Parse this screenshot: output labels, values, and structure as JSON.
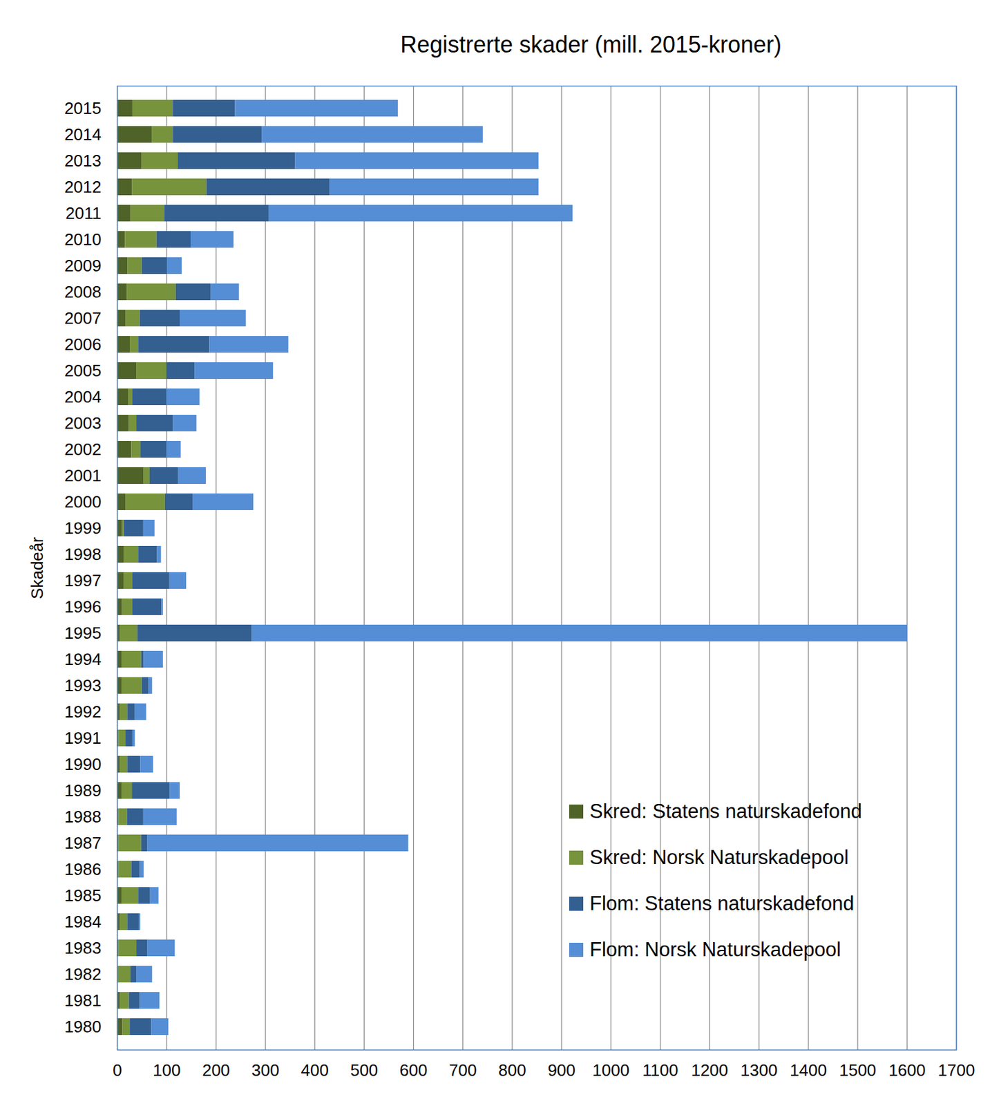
{
  "chart_data": {
    "type": "bar",
    "orientation": "horizontal",
    "stacked": true,
    "title": "Registrerte skader (mill. 2015-kroner)",
    "y_label": "Skadeår",
    "categories": [
      "2015",
      "2014",
      "2013",
      "2012",
      "2011",
      "2010",
      "2009",
      "2008",
      "2007",
      "2006",
      "2005",
      "2004",
      "2003",
      "2002",
      "2001",
      "2000",
      "1999",
      "1998",
      "1997",
      "1996",
      "1995",
      "1994",
      "1993",
      "1992",
      "1991",
      "1990",
      "1989",
      "1988",
      "1987",
      "1986",
      "1985",
      "1984",
      "1983",
      "1982",
      "1981",
      "1980"
    ],
    "series": [
      {
        "name": "Skred: Statens naturskadefond",
        "color": "#4f6228",
        "values": [
          31,
          70,
          50,
          30,
          27,
          16,
          21,
          20,
          17,
          26,
          39,
          23,
          24,
          29,
          54,
          17,
          10,
          14,
          13,
          10,
          6,
          9,
          9,
          6,
          3,
          6,
          9,
          3,
          3,
          3,
          9,
          6,
          3,
          1,
          6,
          11
        ]
      },
      {
        "name": "Skred: Norsk Naturskadepool",
        "color": "#77933c",
        "values": [
          82,
          43,
          73,
          151,
          69,
          64,
          29,
          99,
          29,
          17,
          61,
          8,
          15,
          18,
          12,
          80,
          4,
          29,
          18,
          21,
          35,
          40,
          41,
          15,
          14,
          15,
          21,
          17,
          46,
          26,
          34,
          15,
          36,
          26,
          18,
          15
        ]
      },
      {
        "name": "Flom: Statens naturskadefond",
        "color": "#335f91",
        "values": [
          126,
          180,
          238,
          250,
          211,
          69,
          51,
          71,
          81,
          144,
          57,
          69,
          74,
          53,
          58,
          56,
          39,
          38,
          75,
          59,
          232,
          5,
          14,
          15,
          14,
          26,
          77,
          33,
          12,
          17,
          24,
          23,
          22,
          12,
          22,
          43
        ]
      },
      {
        "name": "Flom: Norsk Naturskadepool",
        "color": "#558ed5",
        "values": [
          330,
          448,
          493,
          423,
          616,
          87,
          30,
          57,
          134,
          160,
          159,
          67,
          48,
          29,
          56,
          123,
          23,
          8,
          34,
          3,
          1328,
          39,
          7,
          23,
          5,
          26,
          20,
          68,
          529,
          8,
          17,
          3,
          56,
          32,
          40,
          35
        ]
      }
    ],
    "xlim": [
      0,
      1700
    ],
    "xticks": [
      0,
      100,
      200,
      300,
      400,
      500,
      600,
      700,
      800,
      900,
      1000,
      1100,
      1200,
      1300,
      1400,
      1500,
      1600,
      1700
    ],
    "grid": true,
    "legend": "lower right"
  }
}
